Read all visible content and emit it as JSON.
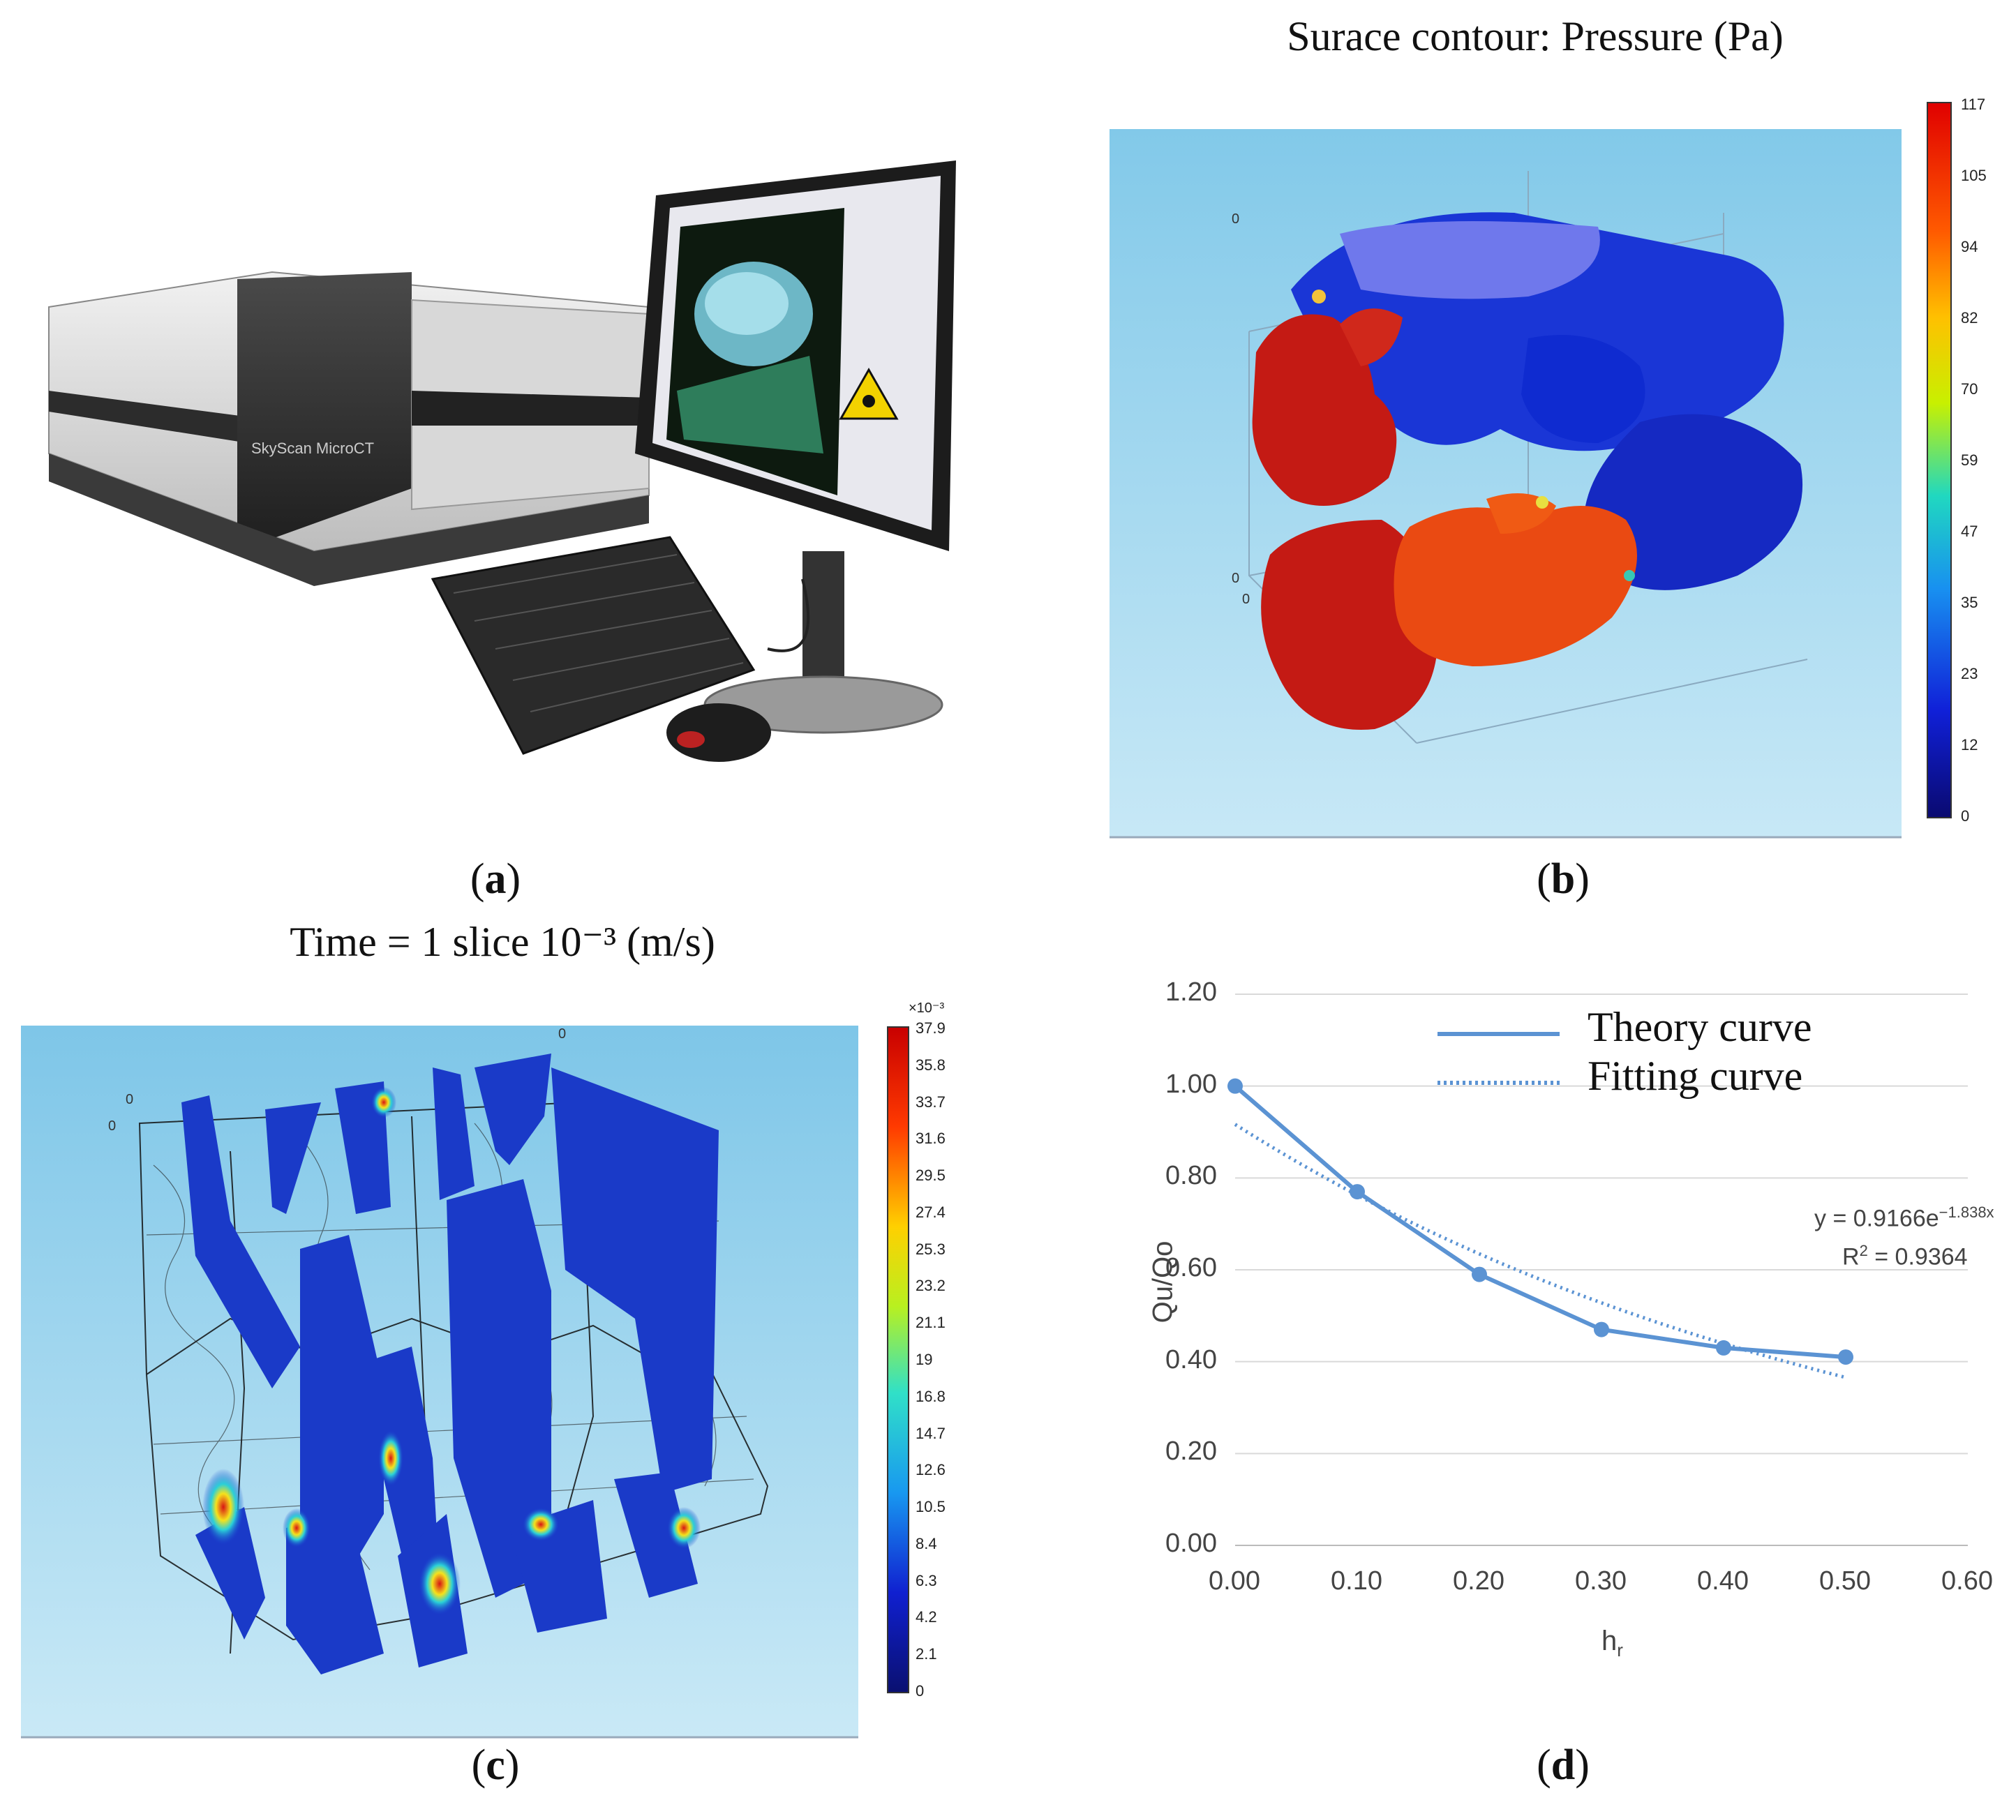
{
  "panels": {
    "a": {
      "label": "a"
    },
    "b": {
      "label": "b",
      "title": "Surace contour: Pressure (Pa)",
      "colorbar_ticks": [
        "117",
        "105",
        "94",
        "82",
        "70",
        "59",
        "47",
        "35",
        "23",
        "12",
        "0"
      ],
      "axis_marks": [
        "0",
        "0",
        "0"
      ]
    },
    "c": {
      "label": "c",
      "title": "Time = 1 slice 10⁻³ (m/s)",
      "colorbar_exponent": "×10⁻³",
      "colorbar_ticks": [
        "37.9",
        "35.8",
        "33.7",
        "31.6",
        "29.5",
        "27.4",
        "25.3",
        "23.2",
        "21.1",
        "19",
        "16.8",
        "14.7",
        "12.6",
        "10.5",
        "8.4",
        "6.3",
        "4.2",
        "2.1",
        "0"
      ],
      "axis_marks": [
        "0",
        "0",
        "0"
      ]
    },
    "d": {
      "label": "d",
      "legend": {
        "theory": "Theory curve",
        "fitting": "Fitting curve"
      },
      "equation": "y = 0.9166e",
      "equation_exp": "−1.838x",
      "r2_label": "R",
      "r2_sup": "2",
      "r2_value": " = 0.9364",
      "ylabel": "Qu/Qo",
      "xlabel": "h",
      "xlabel_sub": "r"
    }
  },
  "chart_data": {
    "type": "line",
    "xlabel": "hr",
    "ylabel": "Qu/Qo",
    "xlim": [
      0,
      0.6
    ],
    "ylim": [
      0,
      1.2
    ],
    "x_ticks": [
      "0.00",
      "0.10",
      "0.20",
      "0.30",
      "0.40",
      "0.50",
      "0.60"
    ],
    "y_ticks": [
      "0.00",
      "0.20",
      "0.40",
      "0.60",
      "0.80",
      "1.00",
      "1.20"
    ],
    "grid": "horizontal",
    "legend_position": "top-right",
    "series": [
      {
        "name": "Theory curve",
        "style": "solid-markers",
        "color": "#5b93d3",
        "x": [
          0.0,
          0.1,
          0.2,
          0.3,
          0.4,
          0.5
        ],
        "y": [
          1.0,
          0.77,
          0.59,
          0.47,
          0.43,
          0.41
        ]
      },
      {
        "name": "Fitting curve",
        "style": "dotted",
        "color": "#5b93d3",
        "fit": {
          "a": 0.9166,
          "b": -1.838,
          "from": 0.0,
          "to": 0.5
        }
      }
    ],
    "annotations": [
      "y = 0.9166e−1.838x",
      "R2 = 0.9364"
    ]
  }
}
